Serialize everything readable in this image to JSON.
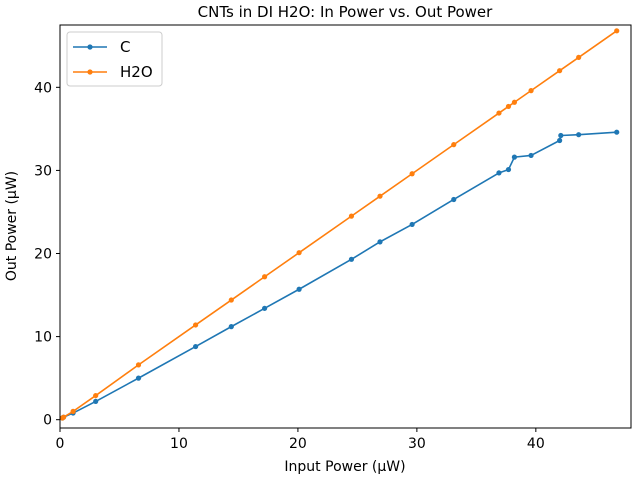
{
  "chart_data": {
    "type": "line",
    "title": "CNTs in DI H2O: In Power vs. Out Power",
    "xlabel": "Input Power (μW)",
    "ylabel": "Out Power (μW)",
    "xlim": [
      0,
      48
    ],
    "ylim": [
      -1,
      47.5
    ],
    "xticks": [
      0,
      10,
      20,
      30,
      40
    ],
    "yticks": [
      0,
      10,
      20,
      30,
      40
    ],
    "grid": false,
    "legend_position": "top-left",
    "series": [
      {
        "name": "C",
        "color": "#1f77b4",
        "x": [
          0.2,
          0.3,
          1.1,
          3.0,
          6.6,
          11.4,
          14.4,
          17.2,
          20.1,
          24.5,
          26.9,
          29.6,
          33.1,
          36.9,
          37.7,
          38.2,
          39.6,
          42.0,
          42.1,
          43.6,
          46.8
        ],
        "y": [
          0.2,
          0.3,
          0.8,
          2.2,
          5.0,
          8.8,
          11.2,
          13.4,
          15.7,
          19.3,
          21.4,
          23.5,
          26.5,
          29.7,
          30.1,
          31.6,
          31.8,
          33.6,
          34.2,
          34.3,
          34.6
        ]
      },
      {
        "name": "H2O",
        "color": "#ff7f0e",
        "x": [
          0.2,
          0.3,
          1.1,
          3.0,
          6.6,
          11.4,
          14.4,
          17.2,
          20.1,
          24.5,
          26.9,
          29.6,
          33.1,
          36.9,
          37.7,
          38.2,
          39.6,
          42.0,
          43.6,
          46.8
        ],
        "y": [
          0.2,
          0.3,
          1.0,
          2.9,
          6.6,
          11.4,
          14.4,
          17.2,
          20.1,
          24.5,
          26.9,
          29.6,
          33.1,
          36.9,
          37.7,
          38.2,
          39.6,
          42.0,
          43.6,
          46.8
        ]
      }
    ]
  }
}
